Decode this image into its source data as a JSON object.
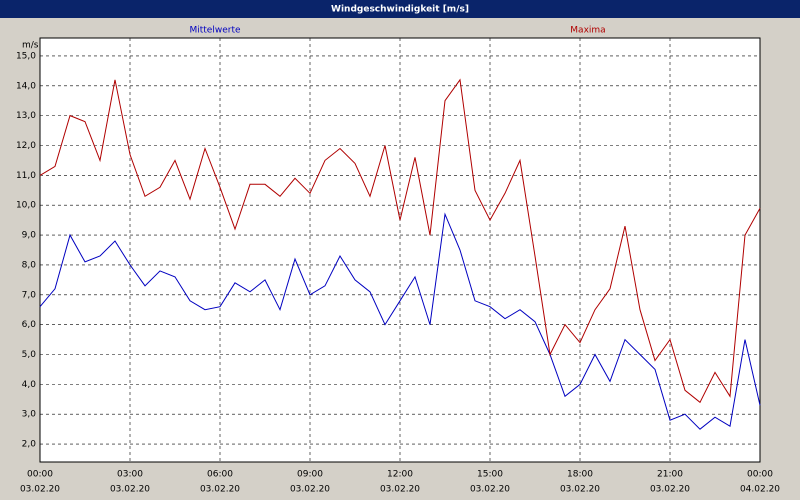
{
  "chart_data": {
    "type": "line",
    "title": "Windgeschwindigkeit [m/s]",
    "y_label": "m/s",
    "grid": true,
    "x": [
      0,
      0.5,
      1,
      1.5,
      2,
      2.5,
      3,
      3.5,
      4,
      4.5,
      5,
      5.5,
      6,
      6.5,
      7,
      7.5,
      8,
      8.5,
      9,
      9.5,
      10,
      10.5,
      11,
      11.5,
      12,
      12.5,
      13,
      13.5,
      14,
      14.5,
      15,
      15.5,
      16,
      16.5,
      17,
      17.5,
      18,
      18.5,
      19,
      19.5,
      20,
      20.5,
      21,
      21.5,
      22,
      22.5,
      23,
      23.5,
      24
    ],
    "xlim": [
      0,
      24
    ],
    "xticks": [
      {
        "value": 0,
        "label": "00:00",
        "date": "03.02.20"
      },
      {
        "value": 3,
        "label": "03:00",
        "date": "03.02.20"
      },
      {
        "value": 6,
        "label": "06:00",
        "date": "03.02.20"
      },
      {
        "value": 9,
        "label": "09:00",
        "date": "03.02.20"
      },
      {
        "value": 12,
        "label": "12:00",
        "date": "03.02.20"
      },
      {
        "value": 15,
        "label": "15:00",
        "date": "03.02.20"
      },
      {
        "value": 18,
        "label": "18:00",
        "date": "03.02.20"
      },
      {
        "value": 21,
        "label": "21:00",
        "date": "03.02.20"
      },
      {
        "value": 24,
        "label": "00:00",
        "date": "04.02.20"
      }
    ],
    "ylim": [
      1.4,
      15.6
    ],
    "yticks": [
      {
        "value": 2,
        "label": "2,0"
      },
      {
        "value": 3,
        "label": "3,0"
      },
      {
        "value": 4,
        "label": "4,0"
      },
      {
        "value": 5,
        "label": "5,0"
      },
      {
        "value": 6,
        "label": "6,0"
      },
      {
        "value": 7,
        "label": "7,0"
      },
      {
        "value": 8,
        "label": "8,0"
      },
      {
        "value": 9,
        "label": "9,0"
      },
      {
        "value": 10,
        "label": "10,0"
      },
      {
        "value": 11,
        "label": "11,0"
      },
      {
        "value": 12,
        "label": "12,0"
      },
      {
        "value": 13,
        "label": "13,0"
      },
      {
        "value": 14,
        "label": "14,0"
      },
      {
        "value": 15,
        "label": "15,0"
      }
    ],
    "series": [
      {
        "name": "Mittelwerte",
        "color": "#0000c0",
        "values": [
          6.6,
          7.2,
          9.0,
          8.1,
          8.3,
          8.8,
          8.0,
          7.3,
          7.8,
          7.6,
          6.8,
          6.5,
          6.6,
          7.4,
          7.1,
          7.5,
          6.5,
          8.2,
          7.0,
          7.3,
          8.3,
          7.5,
          7.1,
          6.0,
          6.8,
          7.6,
          6.0,
          9.7,
          8.5,
          6.8,
          6.6,
          6.2,
          6.5,
          6.1,
          5.0,
          3.6,
          4.0,
          5.0,
          4.1,
          5.5,
          5.0,
          4.5,
          2.8,
          3.0,
          2.5,
          2.9,
          2.6,
          5.5,
          3.3
        ]
      },
      {
        "name": "Maxima",
        "color": "#b00000",
        "values": [
          11.0,
          11.3,
          13.0,
          12.8,
          11.5,
          14.2,
          11.7,
          10.3,
          10.6,
          11.5,
          10.2,
          11.9,
          10.6,
          9.2,
          10.7,
          10.7,
          10.3,
          10.9,
          10.4,
          11.5,
          11.9,
          11.4,
          10.3,
          12.0,
          9.5,
          11.6,
          9.0,
          13.5,
          14.2,
          10.5,
          9.5,
          10.4,
          11.5,
          8.3,
          5.0,
          6.0,
          5.4,
          6.5,
          7.2,
          9.3,
          6.5,
          4.8,
          5.5,
          3.8,
          3.4,
          4.4,
          3.6,
          9.0,
          9.9
        ]
      }
    ]
  }
}
